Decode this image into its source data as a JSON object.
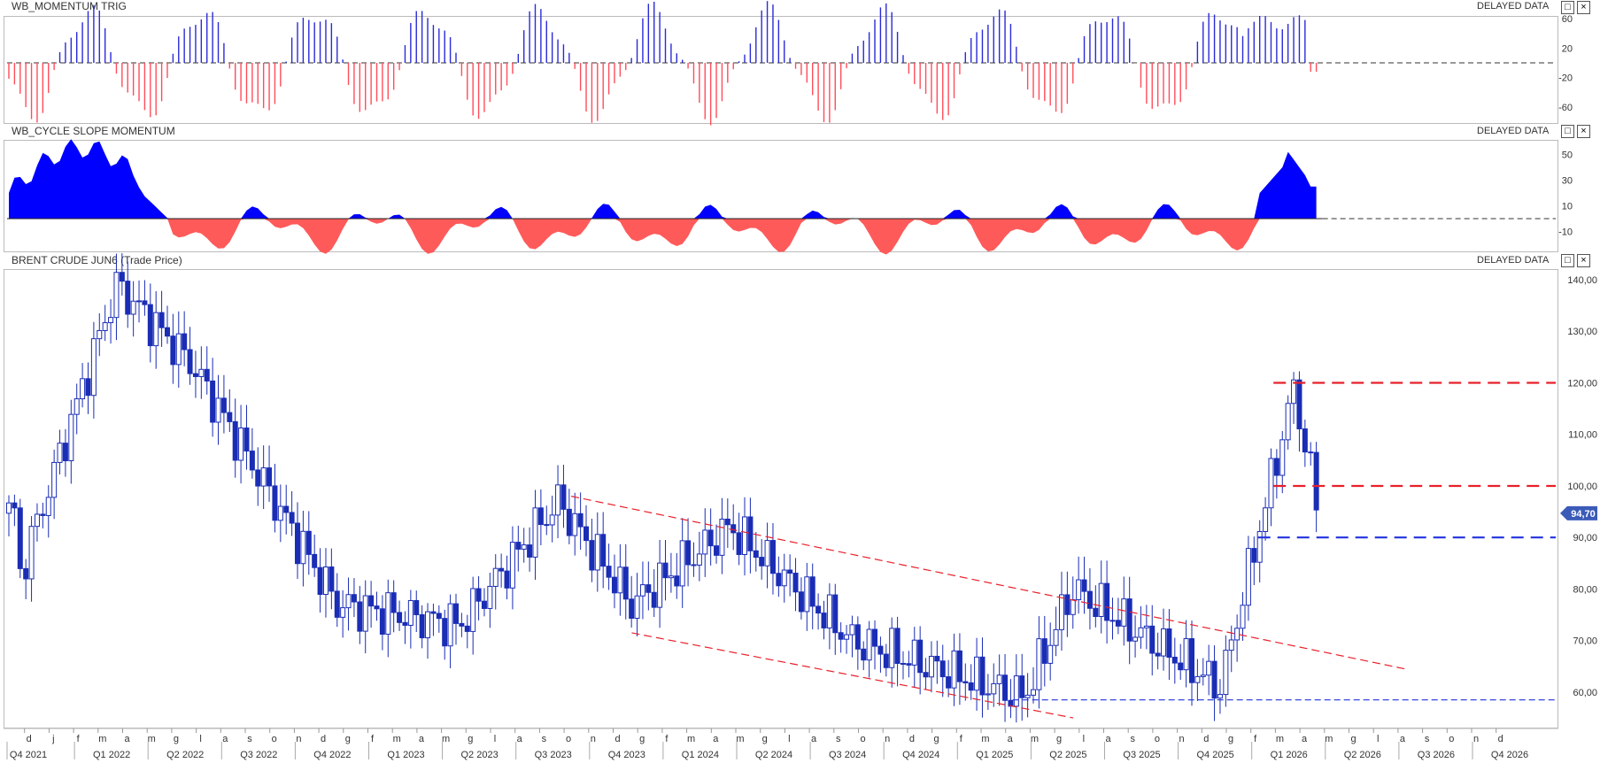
{
  "panels": [
    {
      "title": "WB_MOMENTUM TRIG",
      "delayed": "DELAYED DATA"
    },
    {
      "title": "WB_CYCLE SLOPE MOMENTUM",
      "delayed": "DELAYED DATA"
    },
    {
      "title": "BRENT CRUDE JUN6 (Trade Price)",
      "delayed": "DELAYED DATA"
    }
  ],
  "window_buttons": {
    "maximize": "□",
    "close": "×"
  },
  "colors": {
    "up": "#2a2ad8",
    "down": "#ff4d5a",
    "fill_up": "#0000ff",
    "fill_down": "#ff5a5a",
    "candle": "#1a2db5",
    "red_line": "#e8202a",
    "blue_line": "#2233dd",
    "price_badge": "#3b5bb8"
  },
  "chart_data": [
    {
      "type": "bar",
      "title": "WB_MOMENTUM TRIG",
      "yticks": [
        60,
        20,
        -20,
        -60
      ],
      "ylim": [
        -90,
        90
      ],
      "note": "histogram oscillator, weekly"
    },
    {
      "type": "area",
      "title": "WB_CYCLE SLOPE MOMENTUM",
      "yticks": [
        50,
        30,
        10,
        -10
      ],
      "ylim": [
        -30,
        70
      ]
    },
    {
      "type": "candlestick",
      "title": "BRENT CRUDE JUN6 (Trade Price)",
      "yticks": [
        "140,00",
        "130,00",
        "120,00",
        "110,00",
        "100,00",
        "90,00",
        "80,00",
        "70,00",
        "60,00"
      ],
      "ylim": [
        56,
        142
      ],
      "last_price": "94,70",
      "horizontal_levels": [
        {
          "value": 120,
          "color": "red"
        },
        {
          "value": 100,
          "color": "red"
        },
        {
          "value": 90,
          "color": "blue"
        },
        {
          "value": 58.5,
          "color": "blue"
        }
      ],
      "channel": {
        "upper": [
          [
            "2023-10-01",
            98
          ],
          [
            "2026-08-01",
            64.5
          ]
        ],
        "lower": [
          [
            "2023-12-15",
            71.5
          ],
          [
            "2025-06-15",
            55
          ]
        ]
      },
      "key_prices": [
        {
          "date": "2021-11",
          "value": 82
        },
        {
          "date": "2022-03",
          "value": 139
        },
        {
          "date": "2022-06",
          "value": 124
        },
        {
          "date": "2022-12",
          "value": 77
        },
        {
          "date": "2023-05",
          "value": 73
        },
        {
          "date": "2023-09",
          "value": 97
        },
        {
          "date": "2023-12",
          "value": 77
        },
        {
          "date": "2024-04",
          "value": 92
        },
        {
          "date": "2024-09",
          "value": 70
        },
        {
          "date": "2025-04",
          "value": 59
        },
        {
          "date": "2025-06",
          "value": 80
        },
        {
          "date": "2025-12",
          "value": 61
        },
        {
          "date": "2026-03",
          "value": 119
        },
        {
          "date": "2026-04",
          "value": 94.7
        }
      ]
    }
  ],
  "x_axis": {
    "month_ticks": [
      "d",
      "j",
      "f",
      "m",
      "a",
      "m",
      "g",
      "l",
      "a",
      "s",
      "o",
      "n",
      "d",
      "g",
      "f",
      "m",
      "a",
      "m",
      "g",
      "l",
      "a",
      "s",
      "o",
      "n",
      "d",
      "g",
      "f",
      "m",
      "a",
      "m",
      "g",
      "l",
      "a",
      "s",
      "o",
      "n",
      "d",
      "g",
      "f",
      "m",
      "a",
      "m",
      "g",
      "l",
      "a",
      "s",
      "o",
      "n",
      "d",
      "g",
      "f",
      "m",
      "a",
      "m",
      "g",
      "l",
      "a",
      "s",
      "o",
      "n",
      "d"
    ],
    "quarters": [
      "Q4 2021",
      "Q1 2022",
      "Q2 2022",
      "Q3 2022",
      "Q4 2022",
      "Q1 2023",
      "Q2 2023",
      "Q3 2023",
      "Q4 2023",
      "Q1 2024",
      "Q2 2024",
      "Q3 2024",
      "Q4 2024",
      "Q1 2025",
      "Q2 2025",
      "Q3 2025",
      "Q4 2025",
      "Q1 2026",
      "Q2 2026",
      "Q3 2026",
      "Q4 2026"
    ]
  }
}
